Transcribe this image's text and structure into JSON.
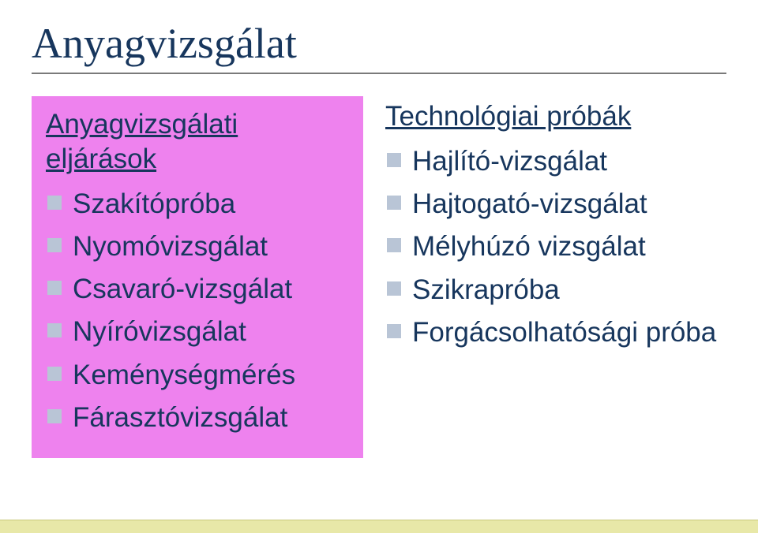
{
  "title": "Anyagvizsgálat",
  "left": {
    "heading": "Anyagvizsgálati eljárások",
    "items": [
      "Szakítópróba",
      "Nyomóvizsgálat",
      "Csavaró-vizsgálat",
      "Nyíróvizsgálat",
      "Keménységmérés",
      "Fárasztóvizsgálat"
    ]
  },
  "right": {
    "heading": "Technológiai próbák",
    "items": [
      "Hajlító-vizsgálat",
      "Hajtogató-vizsgálat",
      "Mélyhúzó vizsgálat",
      "Szikrapróba",
      "Forgácsolhatósági próba"
    ]
  },
  "colors": {
    "title_color": "#17365d",
    "text_color": "#17365d",
    "bullet_color": "#b9c5d6",
    "left_bg": "#ee82ee",
    "rule_color": "#7a7a7a",
    "footer_bg": "#e8e8a8"
  }
}
